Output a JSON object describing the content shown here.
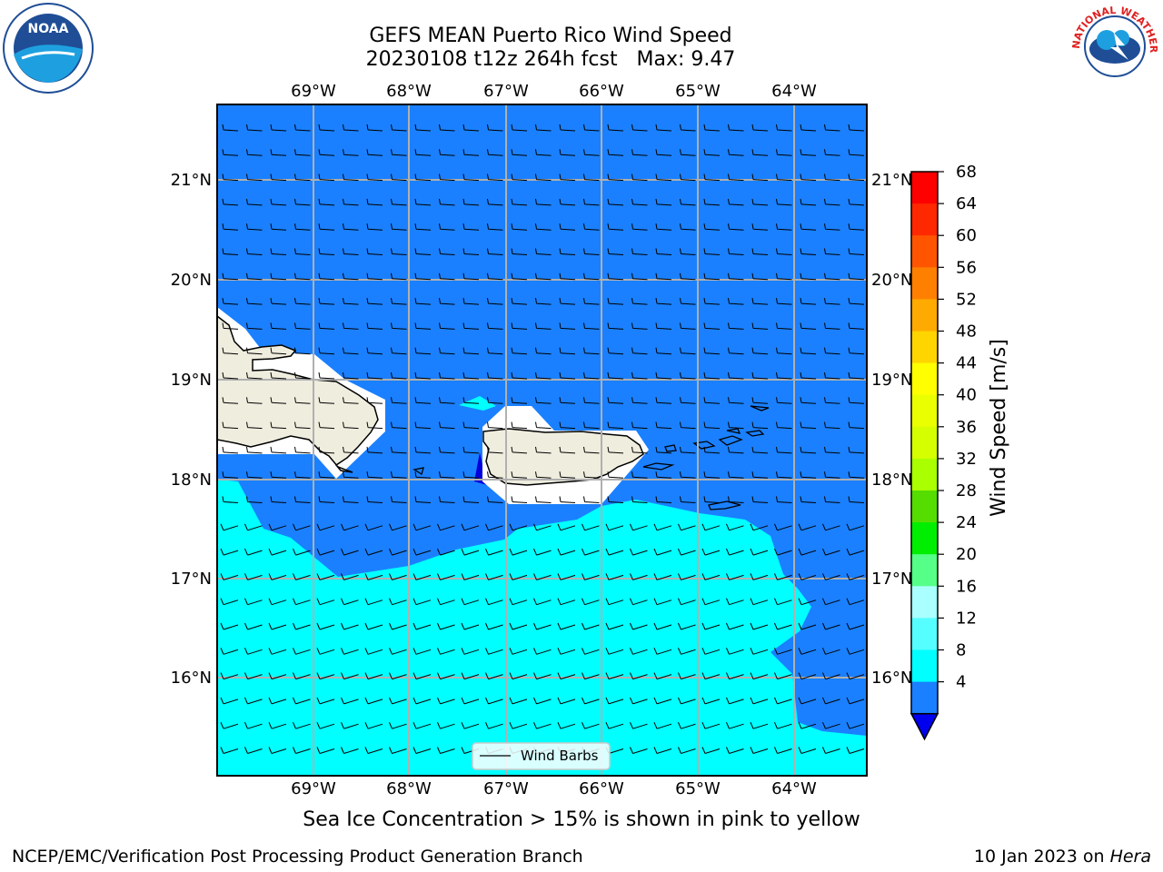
{
  "header": {
    "title_line1": "GEFS MEAN Puerto Rico Wind Speed",
    "title_line2": "20230108 t12z 264h fcst   Max: 9.47"
  },
  "logos": {
    "noaa_text": "NOAA",
    "nws_text": "NATIONAL WEATHER SERVICE"
  },
  "map": {
    "lon_labels": [
      "69°W",
      "68°W",
      "67°W",
      "66°W",
      "65°W",
      "64°W"
    ],
    "lat_labels": [
      "21°N",
      "20°N",
      "19°N",
      "18°N",
      "17°N",
      "16°N"
    ],
    "legend_label": "Wind Barbs",
    "colors": {
      "ocean_4_8": "#1a80ff",
      "ocean_8_12": "#00ffff",
      "below_4": "#0000dd",
      "land": "#efedde"
    }
  },
  "colorbar": {
    "label": "Wind Speed [m/s]",
    "ticks": [
      "68",
      "64",
      "60",
      "56",
      "52",
      "48",
      "44",
      "40",
      "36",
      "32",
      "28",
      "24",
      "20",
      "16",
      "12",
      "8",
      "4"
    ],
    "colors": [
      "#ff0000",
      "#ff2800",
      "#ff5500",
      "#ff8000",
      "#ffaa00",
      "#ffd500",
      "#ffff00",
      "#eaff00",
      "#d5ff00",
      "#aaff00",
      "#55dd00",
      "#00ee00",
      "#55ff88",
      "#aaffff",
      "#55ffff",
      "#00ffff",
      "#1a80ff"
    ],
    "under_color": "#0000ee"
  },
  "notes": {
    "sea_ice": "Sea Ice Concentration > 15% is shown in pink to yellow"
  },
  "footer": {
    "left": "NCEP/EMC/Verification Post Processing Product Generation Branch",
    "date": "10 Jan 2023 on",
    "machine": "Hera"
  }
}
